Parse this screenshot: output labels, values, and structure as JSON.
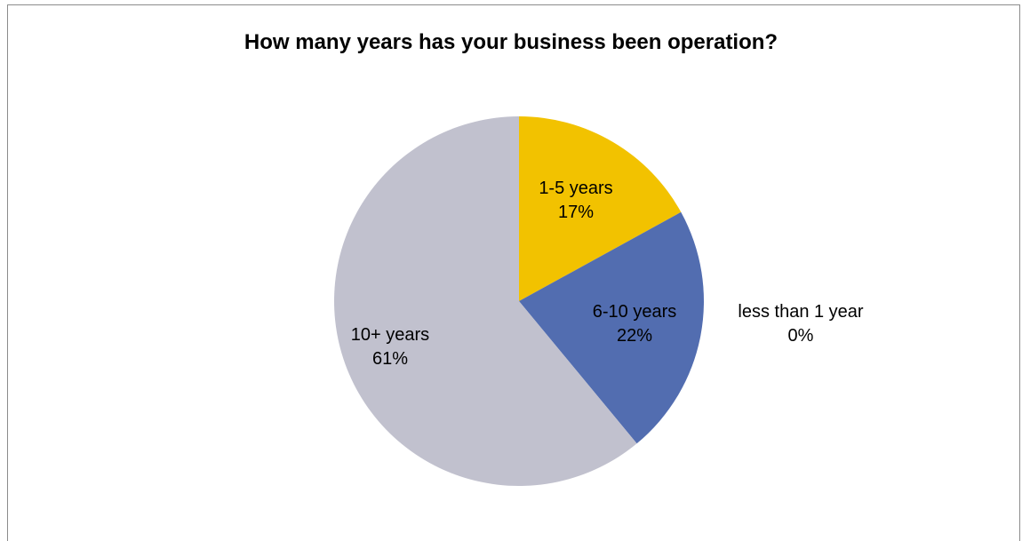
{
  "chart_data": {
    "type": "pie",
    "title": "How many years has your business been operation?",
    "slices": [
      {
        "label": "less than 1 year",
        "percent_label": "0%",
        "value": 0,
        "color": "#4f81bd"
      },
      {
        "label": "1-5 years",
        "percent_label": "17%",
        "value": 17,
        "color": "#f2c200"
      },
      {
        "label": "6-10 years",
        "percent_label": "22%",
        "value": 22,
        "color": "#526db0"
      },
      {
        "label": "10+ years",
        "percent_label": "61%",
        "value": 61,
        "color": "#c1c1ce"
      }
    ],
    "legend": "none",
    "start_angle": "12 o'clock",
    "direction": "clockwise"
  }
}
